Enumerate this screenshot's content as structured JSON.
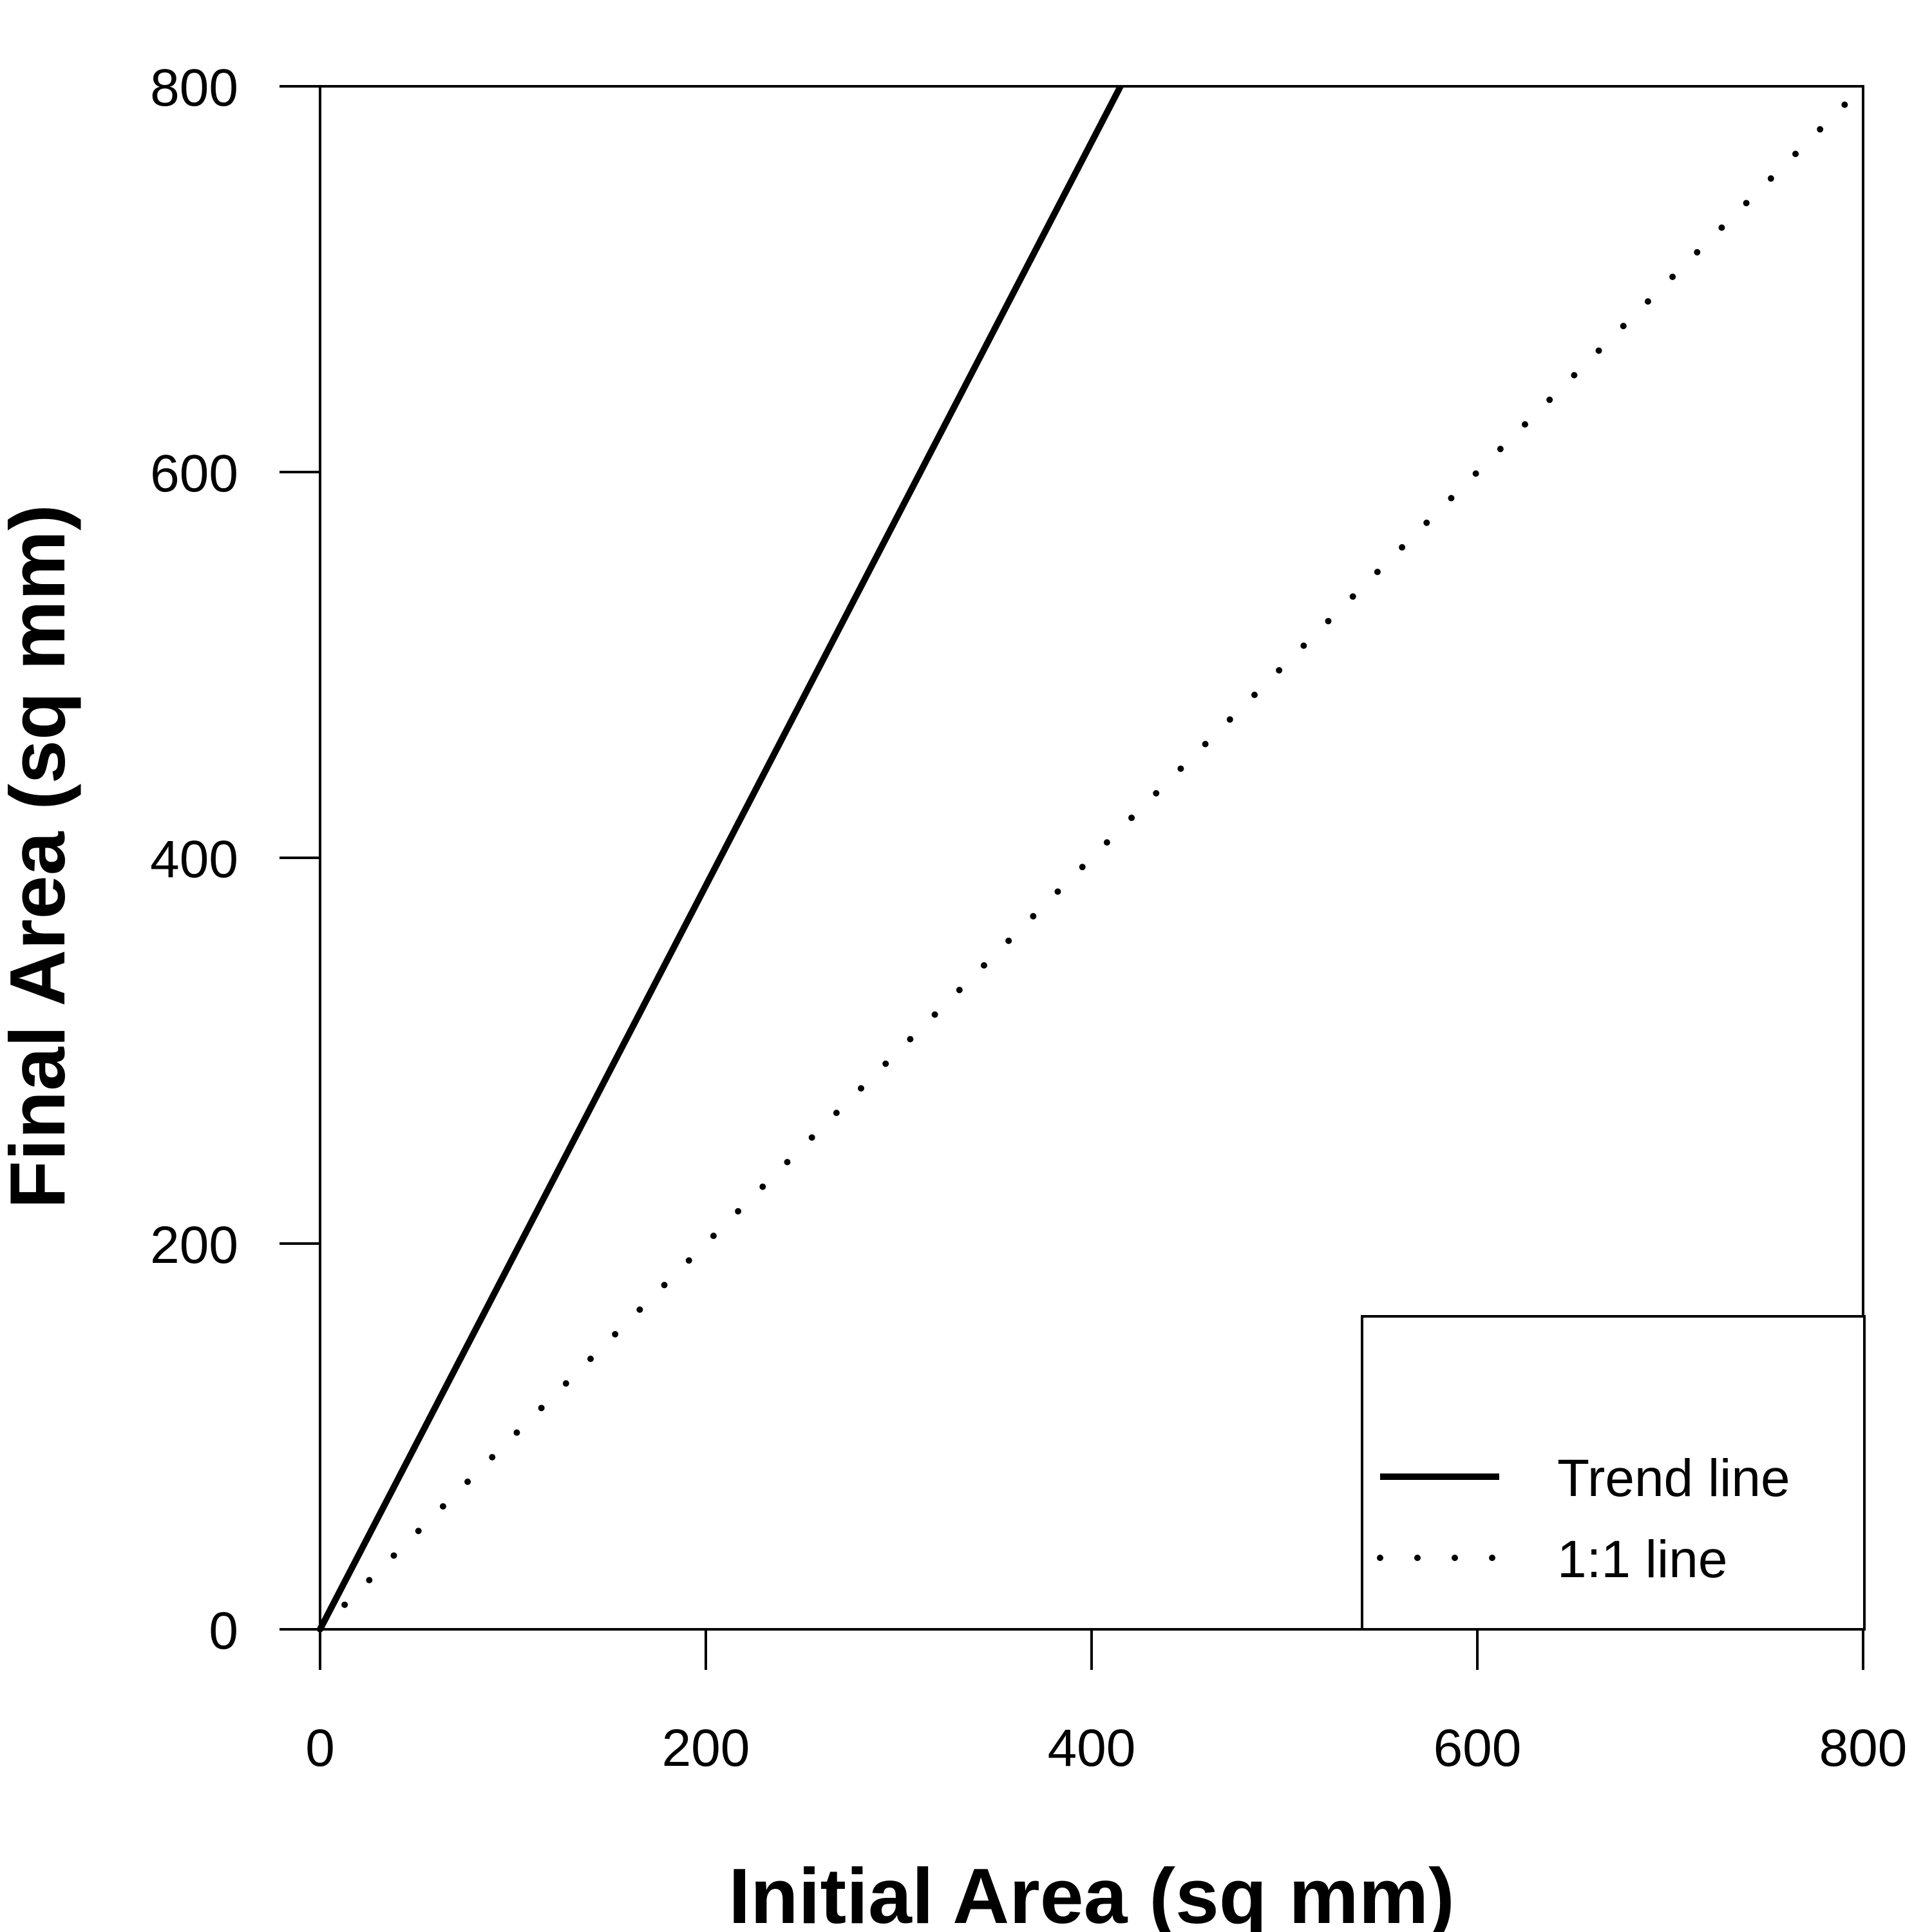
{
  "chart_data": {
    "type": "line",
    "title": "",
    "xlabel": "Initial Area (sq mm)",
    "ylabel": "Final Area (sq mm)",
    "xlim": [
      0,
      800
    ],
    "ylim": [
      0,
      800
    ],
    "x_ticks": [
      0,
      200,
      400,
      600,
      800
    ],
    "y_ticks": [
      0,
      200,
      400,
      600,
      800
    ],
    "x_tick_labels": [
      "0",
      "200",
      "400",
      "600",
      "800"
    ],
    "y_tick_labels": [
      "0",
      "200",
      "400",
      "600",
      "800"
    ],
    "grid": false,
    "legend_position": "bottom-right",
    "series": [
      {
        "name": "Trend line",
        "style": "solid",
        "color": "#000000",
        "x": [
          0,
          415
        ],
        "y": [
          0,
          800
        ]
      },
      {
        "name": "1:1 line",
        "style": "dotted",
        "color": "#000000",
        "x": [
          0,
          800
        ],
        "y": [
          0,
          800
        ]
      }
    ]
  }
}
